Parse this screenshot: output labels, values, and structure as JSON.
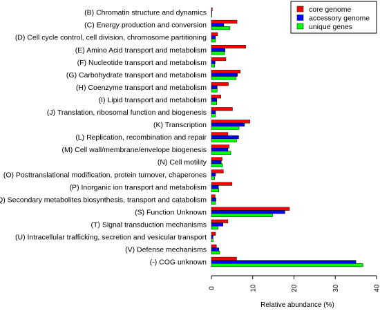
{
  "chart_data": {
    "type": "bar",
    "orientation": "horizontal",
    "xlabel": "Relative abundance (%)",
    "ylabel": "",
    "xlim": [
      0,
      40
    ],
    "ticks": [
      "0",
      "10",
      "20",
      "30",
      "40"
    ],
    "legend_position": "top-right",
    "categories": [
      "(B) Chromatin structure and dynamics",
      "(C) Energy production and conversion",
      "(D) Cell cycle control, cell division, chromosome partitioning",
      "(E) Amino Acid transport and metabolism",
      "(F) Nucleotide transport and metabolism",
      "(G) Carbohydrate transport and metabolism",
      "(H) Coenzyme transport and metabolism",
      "(I) Lipid transport and metabolism",
      "(J) Translation, ribosomal function and biogenesis",
      "(K) Transcription",
      "(L) Replication, recombination and repair",
      "(M) Cell wall/membrane/envelope biogenesis",
      "(N) Cell motility",
      "(O) Posttranslational modification, protein turnover, chaperones",
      "(P) Inorganic ion transport and metabolism",
      "(Q) Secondary metabolites biosynthesis, transport and catabolism",
      "(S) Function Unknown",
      "(T) Signal transduction mechanisms",
      "(U) Intracellular trafficking, secretion and vesicular transport",
      "(V) Defense mechanisms",
      "(-) COG unknown"
    ],
    "series": [
      {
        "name": "core genome",
        "color": "#ff0000",
        "values": [
          0.2,
          6.2,
          1.5,
          8.3,
          3.5,
          7.0,
          4.1,
          2.3,
          5.1,
          9.3,
          4.0,
          4.3,
          2.6,
          2.9,
          5.0,
          0.9,
          18.9,
          4.0,
          1.0,
          1.2,
          6.1
        ]
      },
      {
        "name": "accessory genome",
        "color": "#0000ff",
        "values": [
          0.1,
          3.0,
          1.0,
          3.3,
          0.9,
          6.3,
          1.4,
          1.3,
          1.0,
          8.0,
          6.6,
          4.0,
          2.4,
          1.0,
          1.7,
          1.1,
          17.8,
          2.8,
          0.4,
          1.8,
          35.0
        ]
      },
      {
        "name": "unique genes",
        "color": "#00ff00",
        "values": [
          0.1,
          4.5,
          1.0,
          3.2,
          0.8,
          6.0,
          1.4,
          1.3,
          1.0,
          6.7,
          6.1,
          4.7,
          2.7,
          0.8,
          1.8,
          1.0,
          14.8,
          1.6,
          0.4,
          2.0,
          36.7
        ]
      }
    ]
  }
}
